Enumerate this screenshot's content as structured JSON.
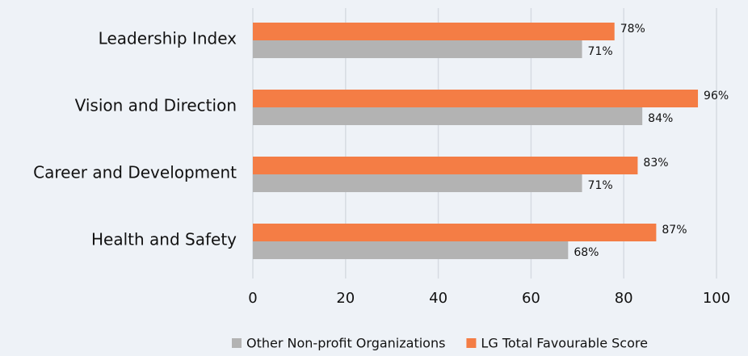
{
  "chart_data": {
    "type": "hbar",
    "categories": [
      "Leadership Index",
      "Vision and Direction",
      "Career and Development",
      "Health and Safety"
    ],
    "series": [
      {
        "name": "Other Non-profit Organizations",
        "color": "#b3b3b3",
        "values": [
          71,
          84,
          71,
          68
        ],
        "value_labels": [
          "71%",
          "84%",
          "71%",
          "68%"
        ]
      },
      {
        "name": "LG Total Favourable Score",
        "color": "#f47d45",
        "values": [
          78,
          96,
          83,
          87
        ],
        "value_labels": [
          "78%",
          "96%",
          "83%",
          "87%"
        ]
      }
    ],
    "xlim": [
      0,
      100
    ],
    "xticks": [
      0,
      20,
      40,
      60,
      80,
      100
    ],
    "grid": true,
    "legend": "bottom"
  }
}
